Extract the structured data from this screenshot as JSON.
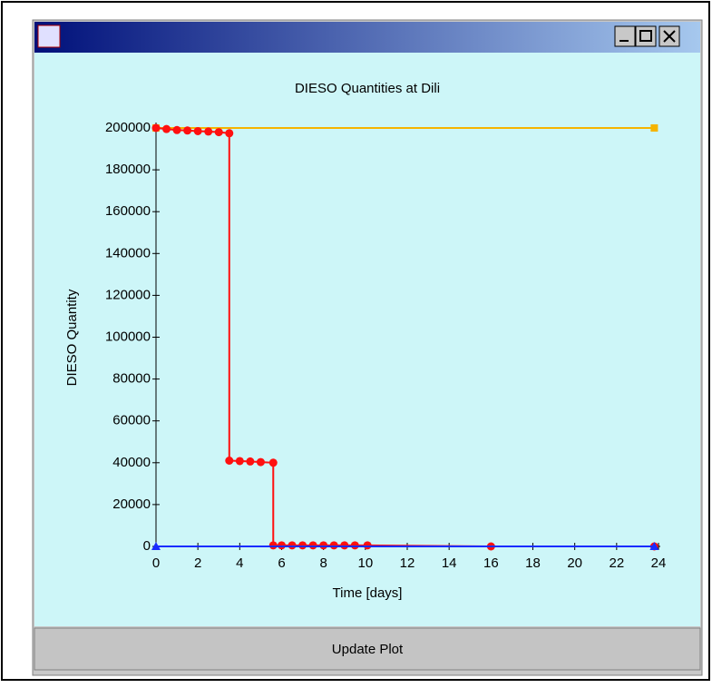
{
  "window": {
    "button": "Update Plot"
  },
  "chart_data": {
    "type": "line",
    "title": "DIESO Quantities at Dili",
    "xlabel": "Time [days]",
    "ylabel": "DIESO Quantity",
    "xlim": [
      0,
      24
    ],
    "xticks": [
      0,
      2,
      4,
      6,
      8,
      10,
      12,
      14,
      16,
      18,
      20,
      22,
      24
    ],
    "ylim": [
      0,
      200000
    ],
    "yticks": [
      0,
      20000,
      40000,
      60000,
      80000,
      100000,
      120000,
      140000,
      160000,
      180000,
      200000
    ],
    "series": [
      {
        "color": "#f5b400",
        "marker": "square",
        "x": [
          0,
          23.8
        ],
        "values": [
          200000,
          200000
        ]
      },
      {
        "color": "#ff1010",
        "marker": "circle",
        "x": [
          0,
          0.5,
          1,
          1.5,
          2,
          2.5,
          3,
          3.5,
          3.5,
          4,
          4.5,
          5,
          5.6,
          5.6,
          6,
          6.5,
          7,
          7.5,
          8,
          8.5,
          9,
          9.5,
          10.1,
          16,
          23.8
        ],
        "values": [
          200000,
          199500,
          199000,
          198800,
          198500,
          198300,
          198000,
          197500,
          41000,
          40800,
          40600,
          40300,
          40000,
          500,
          500,
          500,
          500,
          500,
          500,
          500,
          500,
          500,
          500,
          0,
          0
        ]
      },
      {
        "color": "#1a2cff",
        "marker": "triangle",
        "x": [
          0,
          23.8
        ],
        "values": [
          0,
          0
        ]
      }
    ]
  }
}
